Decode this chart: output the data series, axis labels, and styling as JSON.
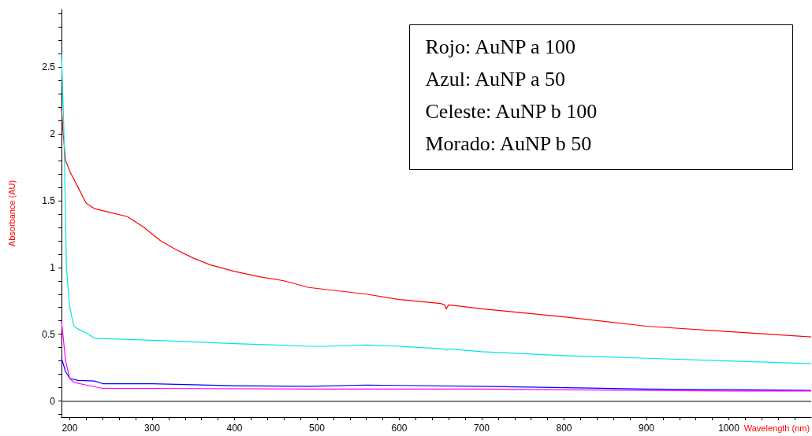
{
  "chart_data": {
    "type": "line",
    "xlabel": "Wavelength (nm)",
    "ylabel": "Absorbance (AU)",
    "annotations": [
      "Rojo: AuNP a 100",
      "Azul: AuNP a 50",
      "Celeste: AuNP b 100",
      "Morado: AuNP b 50"
    ],
    "xlim": [
      190,
      1100
    ],
    "ylim": [
      -0.12,
      2.93
    ],
    "xticks": [
      200,
      {
        "value": 220,
        "label": null
      },
      {
        "value": 240,
        "label": null
      },
      {
        "value": 260,
        "label": null
      },
      {
        "value": 280,
        "label": null
      },
      300,
      {
        "value": 320,
        "label": null
      },
      {
        "value": 340,
        "label": null
      },
      {
        "value": 360,
        "label": null
      },
      {
        "value": 380,
        "label": null
      },
      400,
      {
        "value": 420,
        "label": null
      },
      {
        "value": 440,
        "label": null
      },
      {
        "value": 460,
        "label": null
      },
      {
        "value": 480,
        "label": null
      },
      500,
      {
        "value": 520,
        "label": null
      },
      {
        "value": 540,
        "label": null
      },
      {
        "value": 560,
        "label": null
      },
      {
        "value": 580,
        "label": null
      },
      600,
      {
        "value": 620,
        "label": null
      },
      {
        "value": 640,
        "label": null
      },
      {
        "value": 660,
        "label": null
      },
      {
        "value": 680,
        "label": null
      },
      700,
      {
        "value": 720,
        "label": null
      },
      {
        "value": 740,
        "label": null
      },
      {
        "value": 760,
        "label": null
      },
      {
        "value": 780,
        "label": null
      },
      800,
      {
        "value": 820,
        "label": null
      },
      {
        "value": 840,
        "label": null
      },
      {
        "value": 860,
        "label": null
      },
      {
        "value": 880,
        "label": null
      },
      900,
      {
        "value": 920,
        "label": null
      },
      {
        "value": 940,
        "label": null
      },
      {
        "value": 960,
        "label": null
      },
      {
        "value": 980,
        "label": null
      },
      1000,
      {
        "value": 1020,
        "label": null
      },
      {
        "value": 1040,
        "label": null
      },
      {
        "value": 1060,
        "label": null
      },
      {
        "value": 1080,
        "label": null
      }
    ],
    "yticks": [
      {
        "value": -0.1,
        "label": null
      },
      0,
      {
        "value": 0.1,
        "label": null
      },
      {
        "value": 0.2,
        "label": null
      },
      {
        "value": 0.3,
        "label": null
      },
      {
        "value": 0.4,
        "label": null
      },
      0.5,
      {
        "value": 0.6,
        "label": null
      },
      {
        "value": 0.7,
        "label": null
      },
      {
        "value": 0.8,
        "label": null
      },
      {
        "value": 0.9,
        "label": null
      },
      1,
      {
        "value": 1.1,
        "label": null
      },
      {
        "value": 1.2,
        "label": null
      },
      {
        "value": 1.3,
        "label": null
      },
      {
        "value": 1.4,
        "label": null
      },
      1.5,
      {
        "value": 1.6,
        "label": null
      },
      {
        "value": 1.7,
        "label": null
      },
      {
        "value": 1.8,
        "label": null
      },
      {
        "value": 1.9,
        "label": null
      },
      2,
      {
        "value": 2.1,
        "label": null
      },
      {
        "value": 2.2,
        "label": null
      },
      {
        "value": 2.3,
        "label": null
      },
      {
        "value": 2.4,
        "label": null
      },
      2.5,
      {
        "value": 2.6,
        "label": null
      },
      {
        "value": 2.7,
        "label": null
      },
      {
        "value": 2.8,
        "label": null
      },
      {
        "value": 2.9,
        "label": null
      }
    ],
    "grid": false,
    "marker": "none",
    "line_style": "solid",
    "ref_lines": [
      {
        "axis": "y",
        "value": 0,
        "label": null,
        "color": "#555555"
      }
    ],
    "series": [
      {
        "color": "#ff0000",
        "x": [
          190,
          192,
          195,
          200,
          210,
          220,
          230,
          250,
          270,
          290,
          310,
          330,
          350,
          370,
          400,
          430,
          460,
          490,
          560,
          600,
          650,
          655,
          657,
          660,
          700,
          800,
          900,
          1000,
          1100
        ],
        "values": [
          2.2,
          2.0,
          1.8,
          1.72,
          1.6,
          1.48,
          1.44,
          1.41,
          1.38,
          1.3,
          1.2,
          1.13,
          1.07,
          1.02,
          0.97,
          0.93,
          0.9,
          0.85,
          0.8,
          0.76,
          0.73,
          0.72,
          0.69,
          0.72,
          0.69,
          0.63,
          0.56,
          0.52,
          0.48
        ]
      },
      {
        "color": "#00e5e5",
        "x": [
          190,
          193,
          196,
          200,
          205,
          210,
          220,
          230,
          250,
          300,
          400,
          450,
          490,
          510,
          560,
          600,
          655,
          657,
          660,
          700,
          800,
          900,
          1000,
          1100
        ],
        "values": [
          2.6,
          2.0,
          1.0,
          0.7,
          0.56,
          0.54,
          0.51,
          0.47,
          0.465,
          0.455,
          0.43,
          0.42,
          0.41,
          0.41,
          0.42,
          0.41,
          0.39,
          0.38,
          0.39,
          0.37,
          0.34,
          0.32,
          0.3,
          0.28
        ]
      },
      {
        "color": "#0000ff",
        "x": [
          190,
          195,
          200,
          210,
          230,
          240,
          300,
          400,
          490,
          560,
          700,
          900,
          1000,
          1100
        ],
        "values": [
          0.32,
          0.22,
          0.17,
          0.155,
          0.15,
          0.13,
          0.13,
          0.115,
          0.11,
          0.12,
          0.11,
          0.09,
          0.085,
          0.08
        ]
      },
      {
        "color": "#ff00ff",
        "x": [
          190,
          195,
          200,
          205,
          220,
          240,
          300,
          500,
          700,
          1000,
          1100
        ],
        "values": [
          0.6,
          0.3,
          0.17,
          0.14,
          0.12,
          0.095,
          0.095,
          0.09,
          0.09,
          0.075,
          0.075
        ]
      }
    ]
  }
}
